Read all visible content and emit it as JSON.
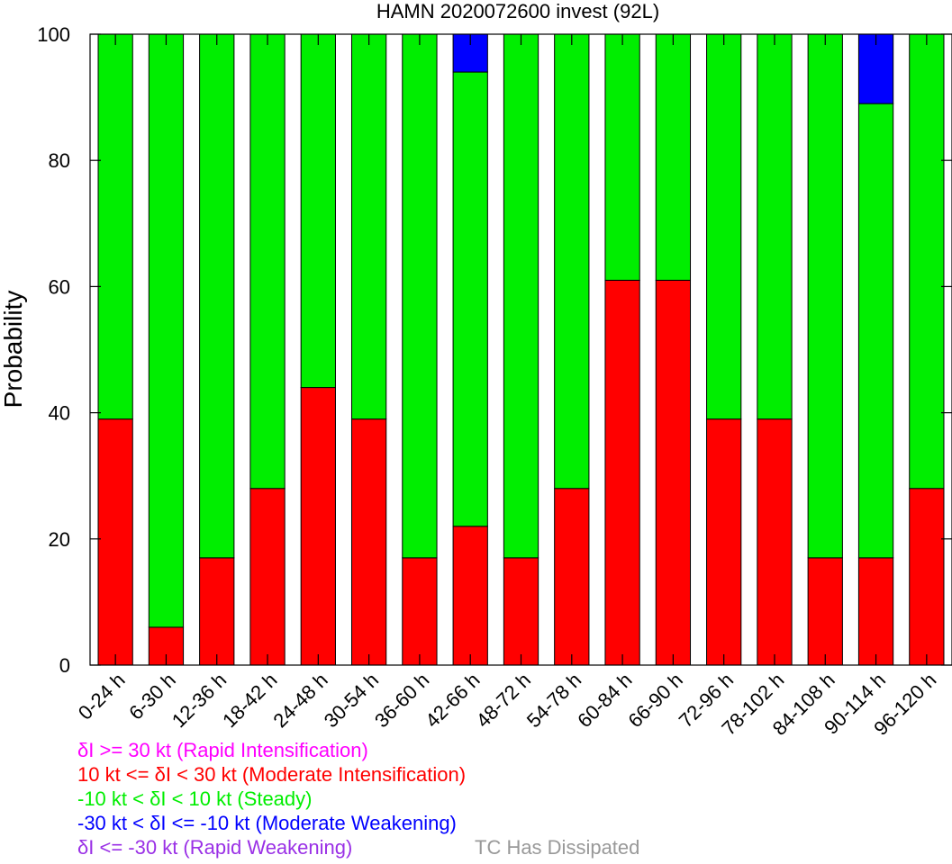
{
  "chart_data": {
    "type": "bar",
    "stacked": true,
    "title": "HAMN 2020072600 invest (92L)",
    "ylabel": "Probability",
    "xlabel": "",
    "ylim": [
      0,
      100
    ],
    "yticks": [
      "0",
      "20",
      "40",
      "60",
      "80",
      "100"
    ],
    "grid": false,
    "categories": [
      "0-24 h",
      "6-30 h",
      "12-36 h",
      "18-42 h",
      "24-48 h",
      "30-54 h",
      "36-60 h",
      "42-66 h",
      "48-72 h",
      "54-78 h",
      "60-84 h",
      "66-90 h",
      "72-96 h",
      "78-102 h",
      "84-108 h",
      "90-114 h",
      "96-120 h"
    ],
    "series": [
      {
        "name": "10 kt <= δI < 30 kt (Moderate Intensification)",
        "color": "#ff0000",
        "values": [
          39,
          6,
          17,
          28,
          44,
          39,
          17,
          22,
          17,
          28,
          61,
          61,
          39,
          39,
          17,
          17,
          28
        ]
      },
      {
        "name": "-10 kt < δI < 10 kt (Steady)",
        "color": "#00ee00",
        "values": [
          61,
          94,
          83,
          72,
          56,
          61,
          83,
          72,
          83,
          72,
          39,
          39,
          61,
          61,
          83,
          72,
          72
        ]
      },
      {
        "name": "-30 kt < δI <= -10 kt (Moderate Weakening)",
        "color": "#0000ff",
        "values": [
          0,
          0,
          0,
          0,
          0,
          0,
          0,
          6,
          0,
          0,
          0,
          0,
          0,
          0,
          0,
          11,
          0
        ]
      }
    ],
    "legend": [
      {
        "text": "δI >= 30 kt (Rapid Intensification)",
        "color": "#ff00ff"
      },
      {
        "text": "10 kt <= δI < 30 kt (Moderate Intensification)",
        "color": "#ff0000"
      },
      {
        "text": "-10 kt < δI < 10 kt (Steady)",
        "color": "#00ee00"
      },
      {
        "text": "-30 kt < δI <= -10 kt (Moderate Weakening)",
        "color": "#0000ff"
      },
      {
        "text": "δI <= -30 kt (Rapid Weakening)",
        "color": "#9a30e6"
      }
    ],
    "dissipated": {
      "text": "TC Has Dissipated",
      "color": "#999999"
    }
  }
}
